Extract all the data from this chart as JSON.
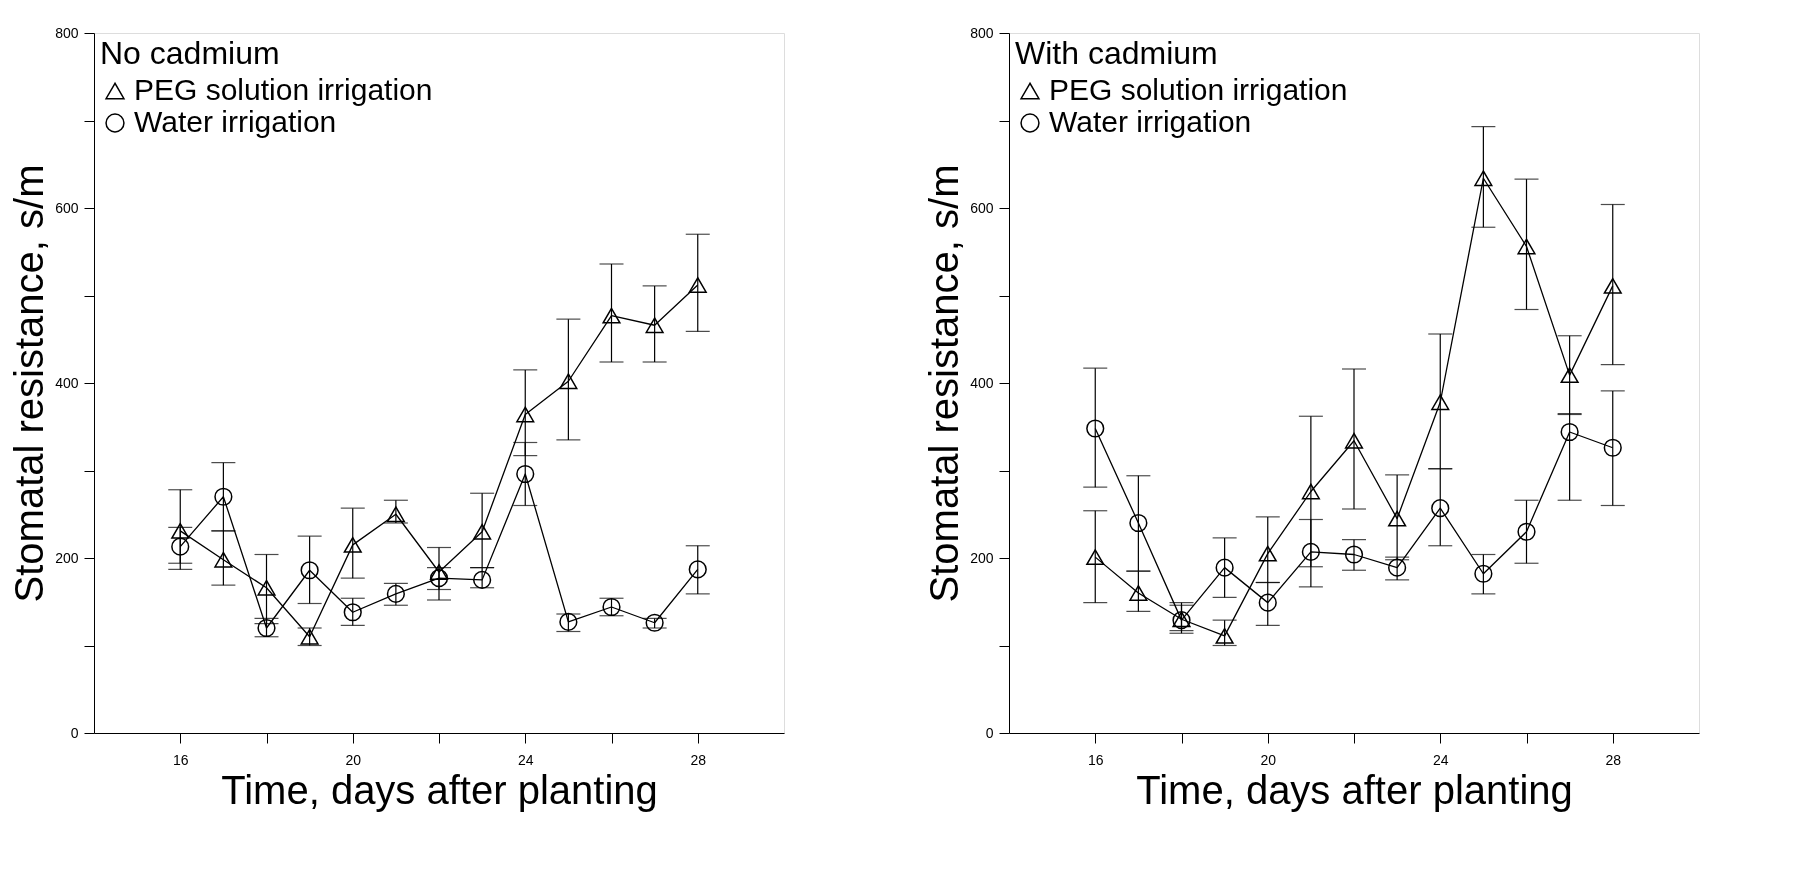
{
  "chart_data": [
    {
      "type": "line",
      "legend_title": "No cadmium",
      "xlabel": "Time, days after planting",
      "ylabel": "Stomatal resistance, s/m",
      "x": [
        16,
        17,
        18,
        19,
        20,
        21,
        22,
        23,
        24,
        25,
        26,
        27,
        28
      ],
      "series": [
        {
          "name": "PEG solution irrigation",
          "color": "#000000",
          "marker": "triangle",
          "values": [
            231,
            198,
            166,
            110,
            215,
            250,
            184,
            230,
            364,
            402,
            477,
            466,
            512
          ],
          "errors": [
            [
              194,
              278
            ],
            [
              169,
              231
            ],
            [
              125,
              204
            ],
            [
              100,
              120
            ],
            [
              177,
              257
            ],
            [
              240,
              266
            ],
            [
              152,
              212
            ],
            [
              189,
              274
            ],
            [
              317,
              415
            ],
            [
              335,
              473
            ],
            [
              424,
              536
            ],
            [
              424,
              511
            ],
            [
              459,
              570
            ]
          ]
        },
        {
          "name": "Water irrigation",
          "color": "#000000",
          "marker": "circle",
          "values": [
            213,
            270,
            120,
            186,
            138,
            159,
            177,
            175,
            296,
            127,
            144,
            126,
            187
          ],
          "errors": [
            [
              187,
              235
            ],
            [
              231,
              309
            ],
            [
              110,
              131
            ],
            [
              148,
              225
            ],
            [
              123,
              154
            ],
            [
              146,
              171
            ],
            [
              164,
              189
            ],
            [
              166,
              189
            ],
            [
              260,
              332
            ],
            [
              116,
              136
            ],
            [
              134,
              154
            ],
            [
              120,
              131
            ],
            [
              159,
              214
            ]
          ]
        }
      ],
      "xlim": [
        14,
        30
      ],
      "xticks": [
        16,
        {
          "value": 18,
          "label": null
        },
        20,
        {
          "value": 22,
          "label": null
        },
        24,
        {
          "value": 26,
          "label": null
        },
        28
      ],
      "ylim": [
        0,
        800
      ],
      "yticks": [
        0,
        {
          "value": 100,
          "label": null
        },
        200,
        {
          "value": 300,
          "label": null
        },
        400,
        {
          "value": 500,
          "label": null
        },
        600,
        {
          "value": 700,
          "label": null
        },
        800
      ],
      "grid": false,
      "legend": "top left",
      "line_style": "solid"
    },
    {
      "type": "line",
      "legend_title": "With cadmium",
      "xlabel": "Time, days after planting",
      "ylabel": "Stomatal resistance, s/m",
      "x": [
        16,
        17,
        18,
        19,
        20,
        21,
        22,
        23,
        24,
        25,
        26,
        27,
        28
      ],
      "series": [
        {
          "name": "PEG solution irrigation",
          "color": "#000000",
          "marker": "triangle",
          "values": [
            201,
            160,
            130,
            111,
            205,
            276,
            334,
            245,
            378,
            634,
            556,
            409,
            511
          ],
          "errors": [
            [
              149,
              254
            ],
            [
              139,
              185
            ],
            [
              114,
              149
            ],
            [
              100,
              129
            ],
            [
              172,
              247
            ],
            [
              190,
              362
            ],
            [
              256,
              416
            ],
            [
              198,
              295
            ],
            [
              302,
              456
            ],
            [
              578,
              693
            ],
            [
              484,
              633
            ],
            [
              364,
              454
            ],
            [
              421,
              604
            ]
          ]
        },
        {
          "name": "Water irrigation",
          "color": "#000000",
          "marker": "circle",
          "values": [
            348,
            240,
            129,
            189,
            149,
            207,
            204,
            189,
            257,
            182,
            230,
            344,
            326
          ],
          "errors": [
            [
              281,
              417
            ],
            [
              185,
              294
            ],
            [
              117,
              146
            ],
            [
              155,
              223
            ],
            [
              123,
              172
            ],
            [
              167,
              244
            ],
            [
              186,
              221
            ],
            [
              175,
              201
            ],
            [
              214,
              302
            ],
            [
              159,
              204
            ],
            [
              194,
              266
            ],
            [
              266,
              365
            ],
            [
              260,
              391
            ]
          ]
        }
      ],
      "xlim": [
        14,
        30
      ],
      "xticks": [
        16,
        {
          "value": 18,
          "label": null
        },
        20,
        {
          "value": 22,
          "label": null
        },
        24,
        {
          "value": 26,
          "label": null
        },
        28
      ],
      "ylim": [
        0,
        800
      ],
      "yticks": [
        0,
        {
          "value": 100,
          "label": null
        },
        200,
        {
          "value": 300,
          "label": null
        },
        400,
        {
          "value": 500,
          "label": null
        },
        600,
        {
          "value": 700,
          "label": null
        },
        800
      ],
      "grid": false,
      "legend": "top left",
      "line_style": "solid"
    }
  ]
}
